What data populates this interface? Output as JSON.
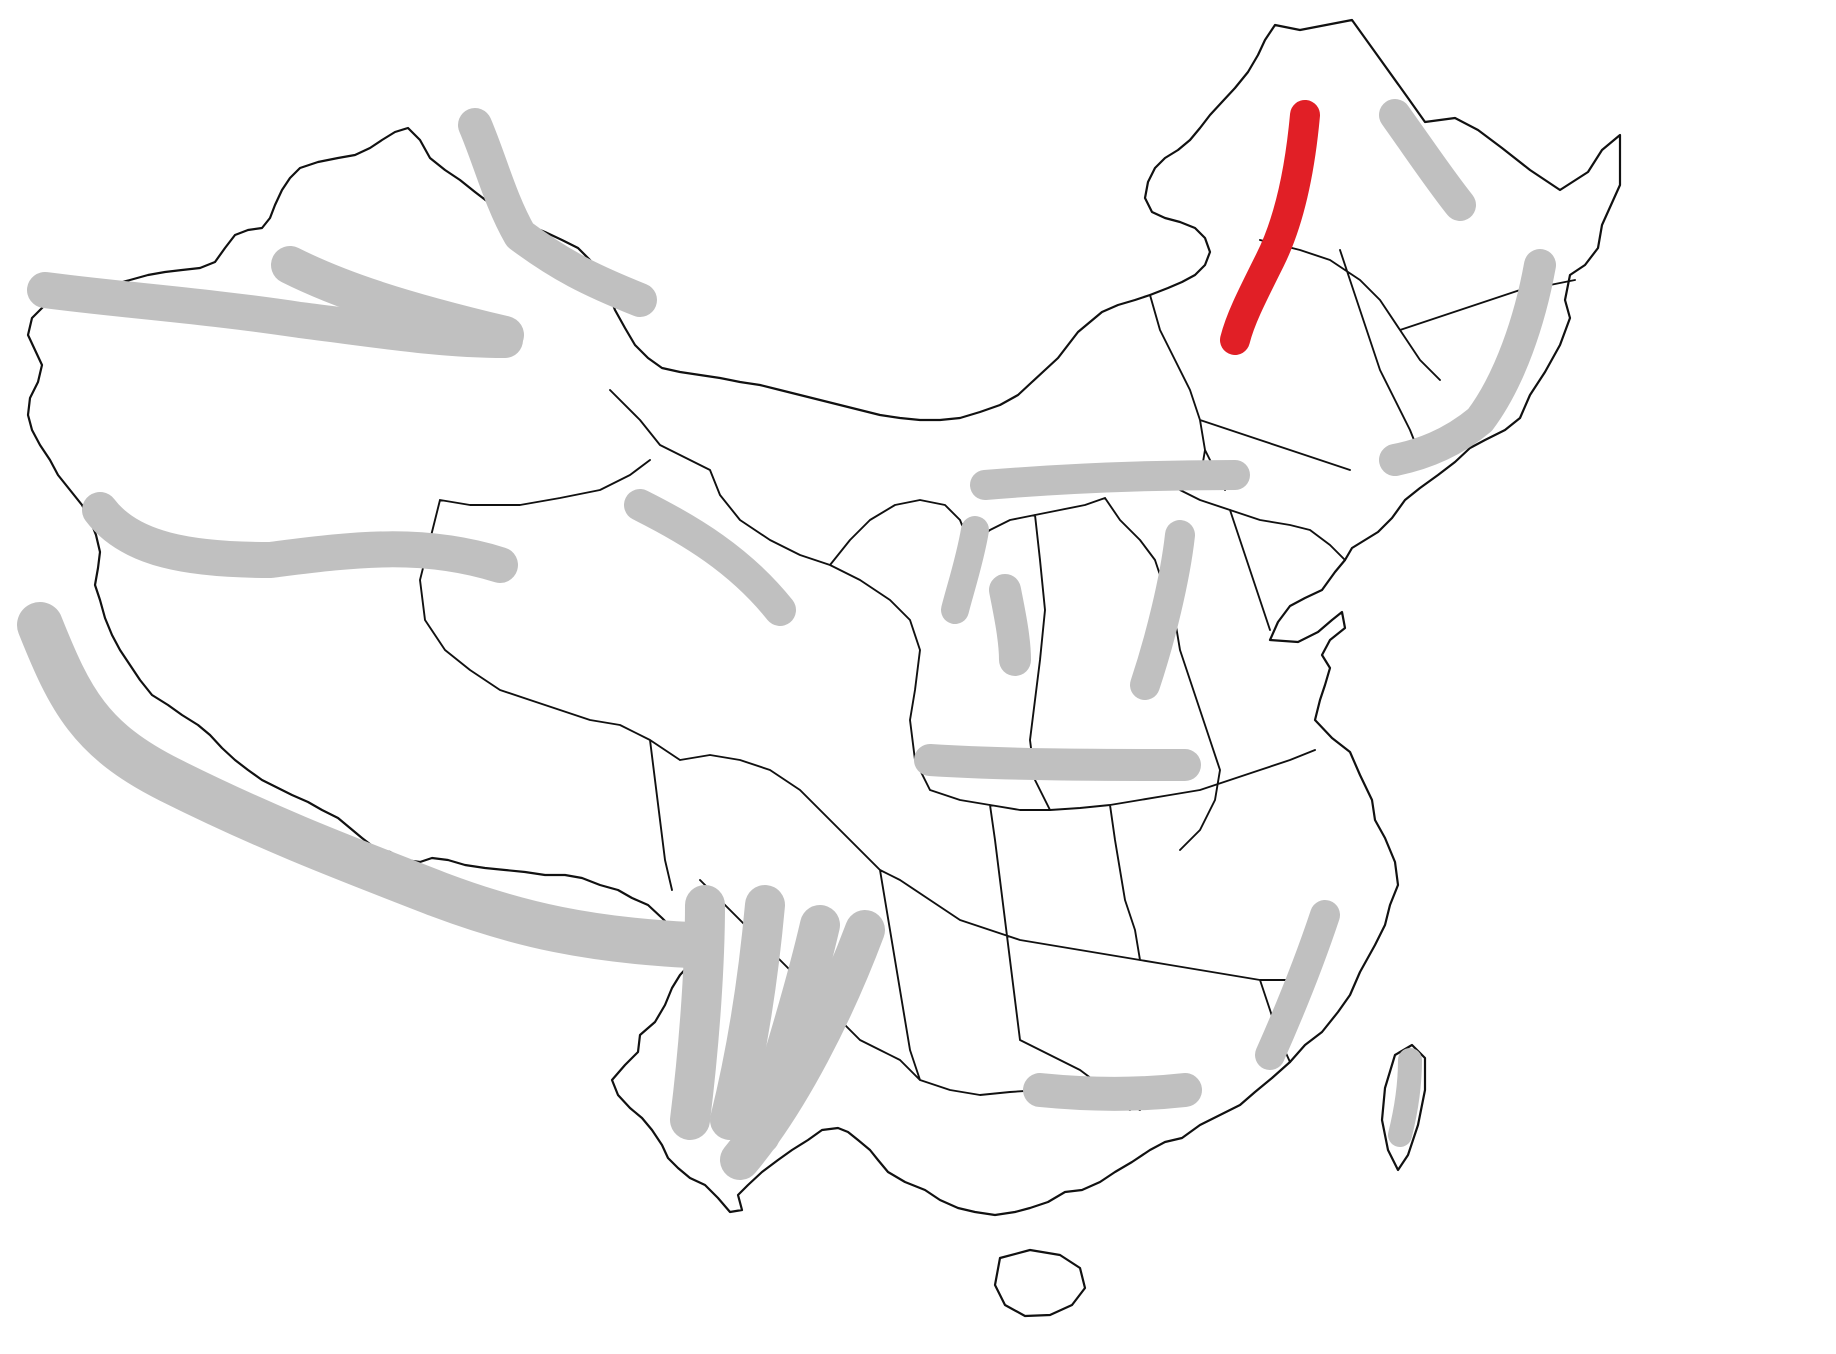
{
  "map": {
    "region": "China",
    "style": "blank-outline",
    "outline_color": "#111111",
    "background_color": "#ffffff"
  },
  "legend": {
    "default_color": "#c0c0c0",
    "highlight_color": "#e11f26"
  },
  "mountain_ranges": [
    {
      "id": "altai",
      "highlighted": false
    },
    {
      "id": "tianshan-north",
      "highlighted": false
    },
    {
      "id": "tianshan-main",
      "highlighted": false
    },
    {
      "id": "kunlun",
      "highlighted": false
    },
    {
      "id": "qilian",
      "highlighted": false
    },
    {
      "id": "himalaya",
      "highlighted": false
    },
    {
      "id": "hengduan-1",
      "highlighted": false
    },
    {
      "id": "hengduan-2",
      "highlighted": false
    },
    {
      "id": "hengduan-3",
      "highlighted": false
    },
    {
      "id": "hengduan-4",
      "highlighted": false
    },
    {
      "id": "greater-khingan",
      "highlighted": true
    },
    {
      "id": "lesser-khingan",
      "highlighted": false
    },
    {
      "id": "changbai",
      "highlighted": false
    },
    {
      "id": "yinshan",
      "highlighted": false
    },
    {
      "id": "helan",
      "highlighted": false
    },
    {
      "id": "liupan",
      "highlighted": false
    },
    {
      "id": "taihang",
      "highlighted": false
    },
    {
      "id": "qinling",
      "highlighted": false
    },
    {
      "id": "wuyi",
      "highlighted": false
    },
    {
      "id": "nanling",
      "highlighted": false
    },
    {
      "id": "taiwan",
      "highlighted": false
    }
  ]
}
